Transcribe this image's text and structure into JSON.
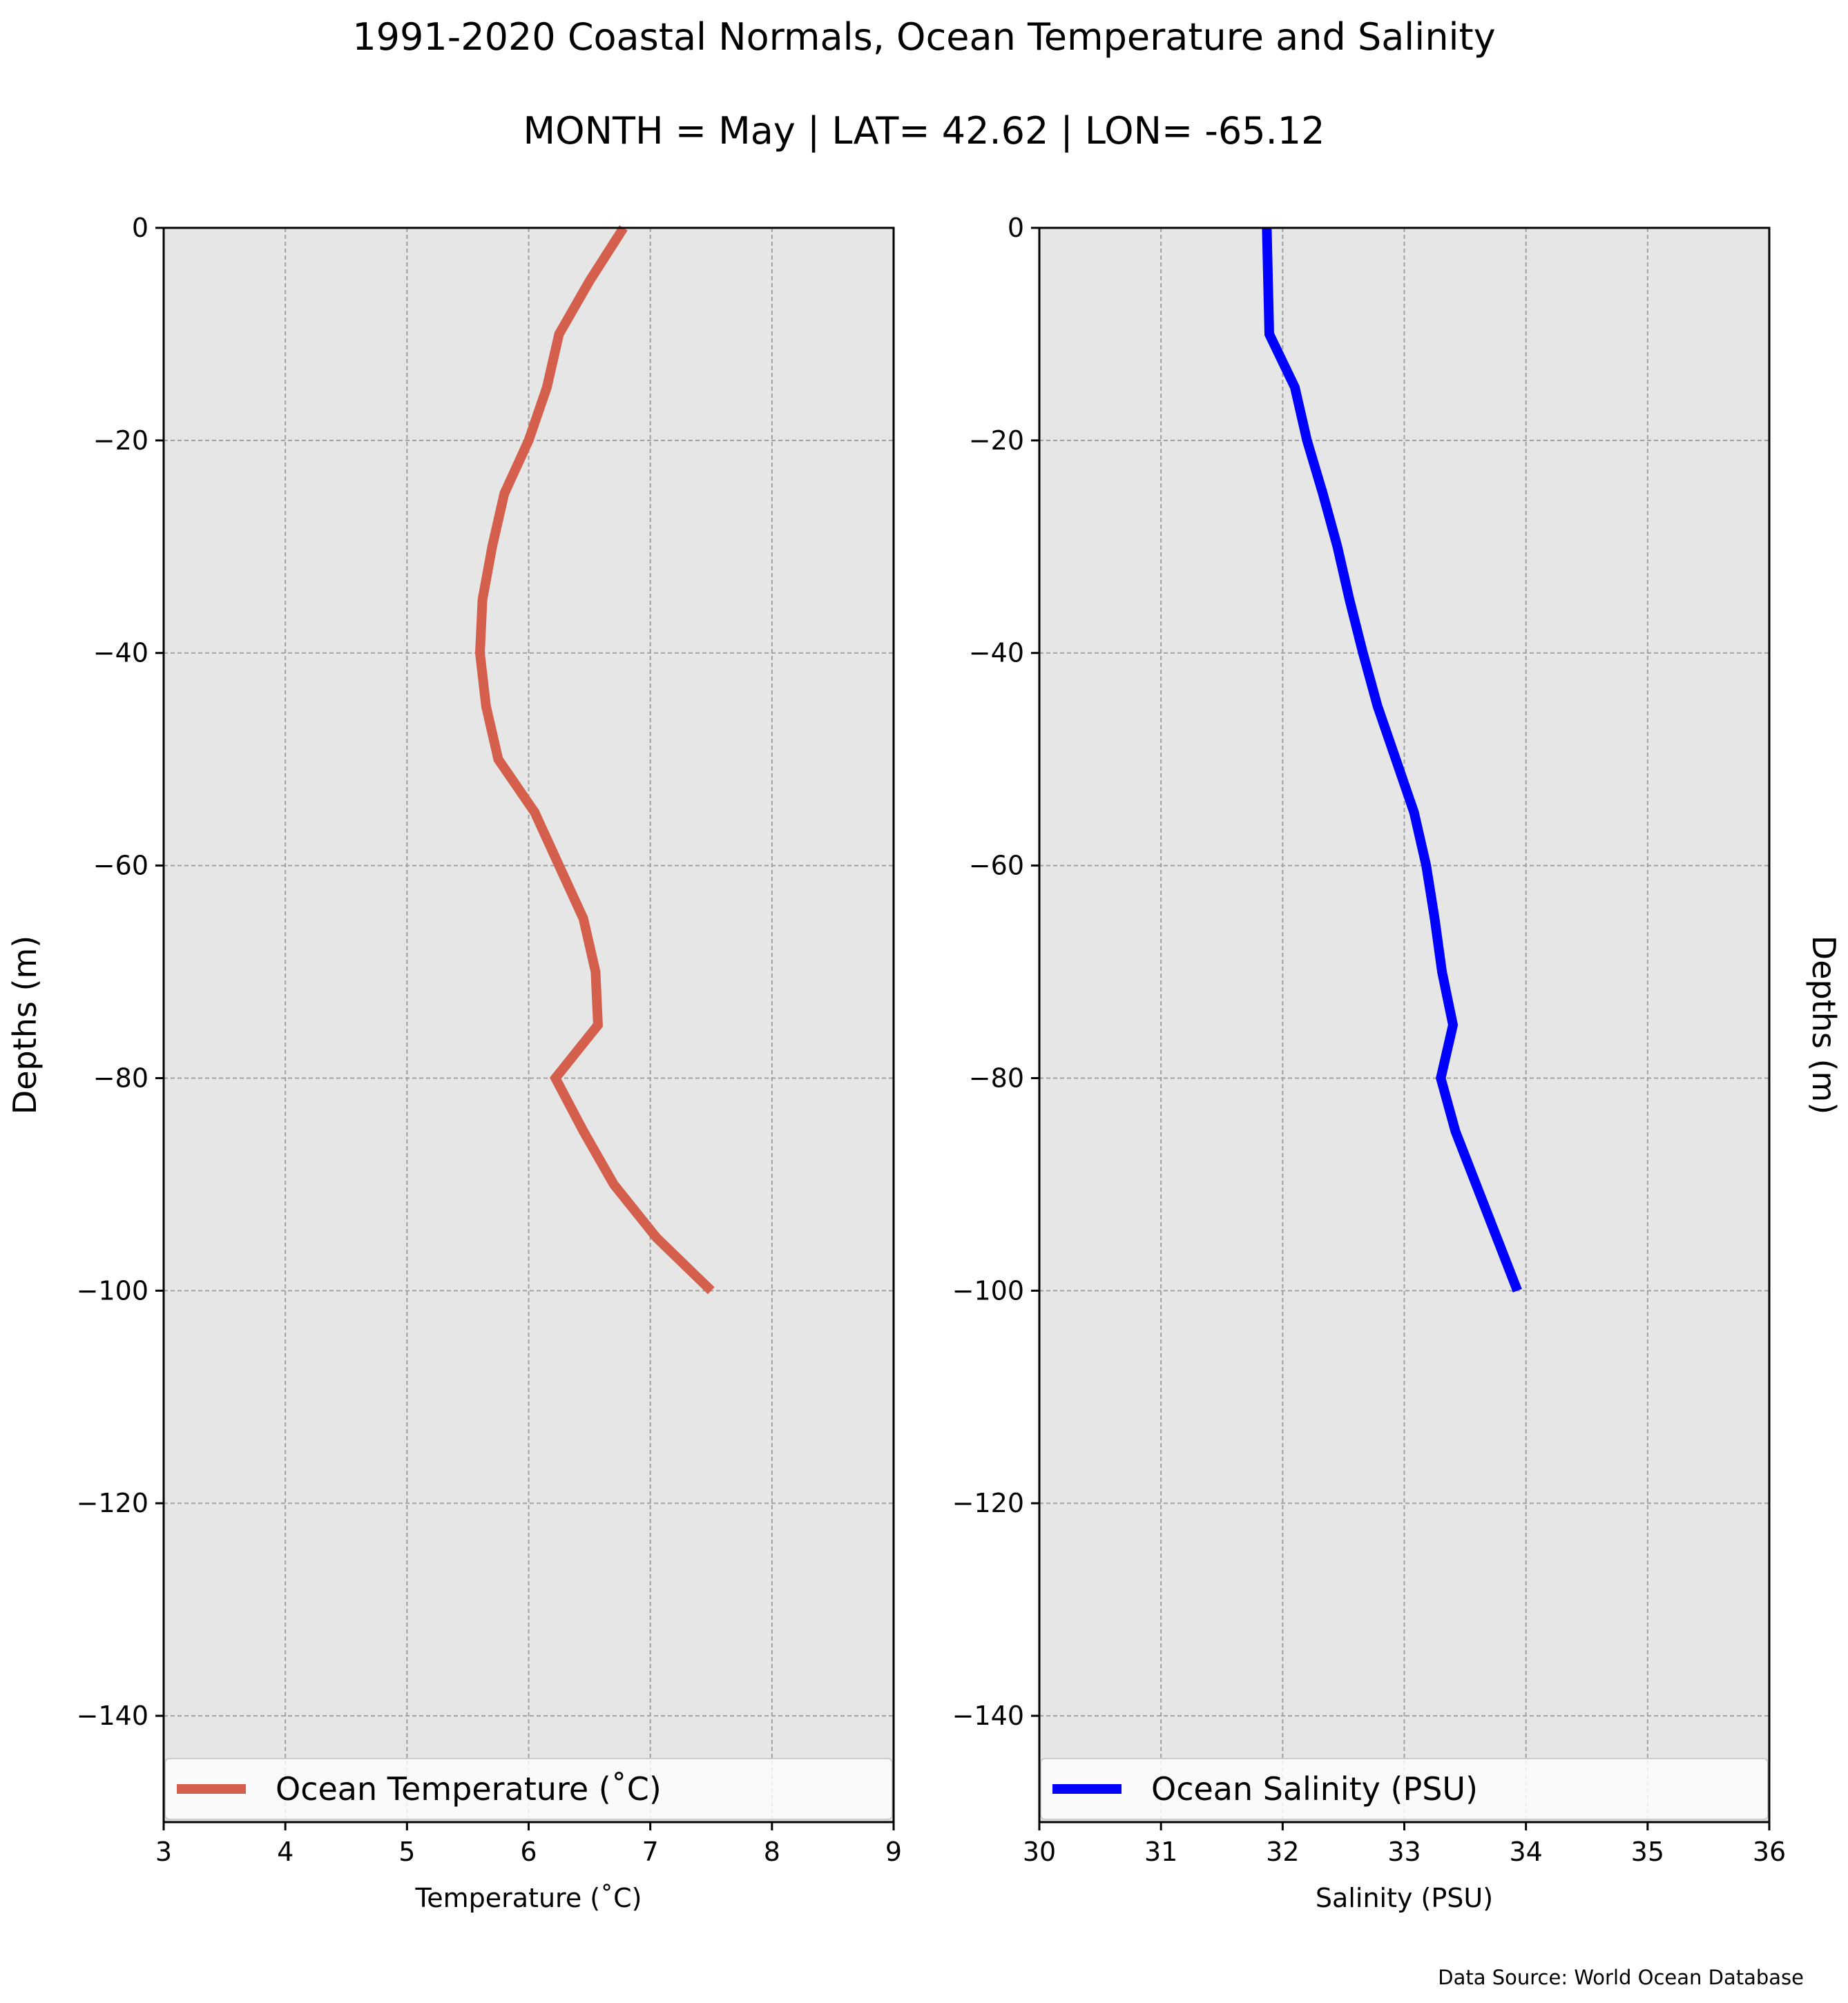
{
  "figure": {
    "title_line1": "1991-2020 Coastal Normals, Ocean Temperature and Salinity",
    "title_line2": "MONTH = May | LAT= 42.62 | LON= -65.12",
    "source_note": "Data Source: World Ocean Database",
    "background": "#e6e6e6"
  },
  "chart_data": [
    {
      "type": "line",
      "title": "",
      "xlabel": "Temperature ($^\\circ$C)",
      "xlabel_display": "Temperature (˚C)",
      "ylabel": "Depths (m)",
      "xlim": [
        3,
        9
      ],
      "ylim": [
        -150,
        0
      ],
      "xticks": [
        3,
        4,
        5,
        6,
        7,
        8,
        9
      ],
      "yticks": [
        0,
        -20,
        -40,
        -60,
        -80,
        -100,
        -120,
        -140
      ],
      "ytick_labels": [
        "0",
        "−20",
        "−40",
        "−60",
        "−80",
        "−100",
        "−120",
        "−140"
      ],
      "grid": true,
      "legend_position": "lower center",
      "series": [
        {
          "name": "Ocean Temperature (˚C)",
          "color": "#d45f4c",
          "depth": [
            0,
            -5,
            -10,
            -15,
            -20,
            -25,
            -30,
            -35,
            -40,
            -45,
            -50,
            -55,
            -60,
            -65,
            -70,
            -75,
            -80,
            -85,
            -90,
            -95,
            -100
          ],
          "values": [
            6.78,
            6.5,
            6.25,
            6.15,
            6.0,
            5.8,
            5.7,
            5.62,
            5.6,
            5.65,
            5.75,
            6.05,
            6.25,
            6.45,
            6.55,
            6.57,
            6.22,
            6.45,
            6.7,
            7.05,
            7.5
          ]
        }
      ]
    },
    {
      "type": "line",
      "title": "",
      "xlabel": "Salinity (PSU)",
      "xlabel_display": "Salinity (PSU)",
      "ylabel": "Depths (m)",
      "xlim": [
        30,
        36
      ],
      "ylim": [
        -150,
        0
      ],
      "xticks": [
        30,
        31,
        32,
        33,
        34,
        35,
        36
      ],
      "yticks": [
        0,
        -20,
        -40,
        -60,
        -80,
        -100,
        -120,
        -140
      ],
      "ytick_labels": [
        "0",
        "−20",
        "−40",
        "−60",
        "−80",
        "−100",
        "−120",
        "−140"
      ],
      "grid": true,
      "legend_position": "lower center",
      "series": [
        {
          "name": "Ocean Salinity (PSU)",
          "color": "#0000ff",
          "depth": [
            0,
            -5,
            -10,
            -15,
            -20,
            -25,
            -30,
            -35,
            -40,
            -45,
            -50,
            -55,
            -60,
            -65,
            -70,
            -75,
            -80,
            -85,
            -90,
            -95,
            -100
          ],
          "values": [
            31.87,
            31.88,
            31.89,
            32.1,
            32.2,
            32.33,
            32.45,
            32.55,
            32.66,
            32.78,
            32.93,
            33.08,
            33.18,
            33.25,
            33.31,
            33.4,
            33.3,
            33.42,
            33.59,
            33.76,
            33.93
          ]
        }
      ]
    }
  ]
}
